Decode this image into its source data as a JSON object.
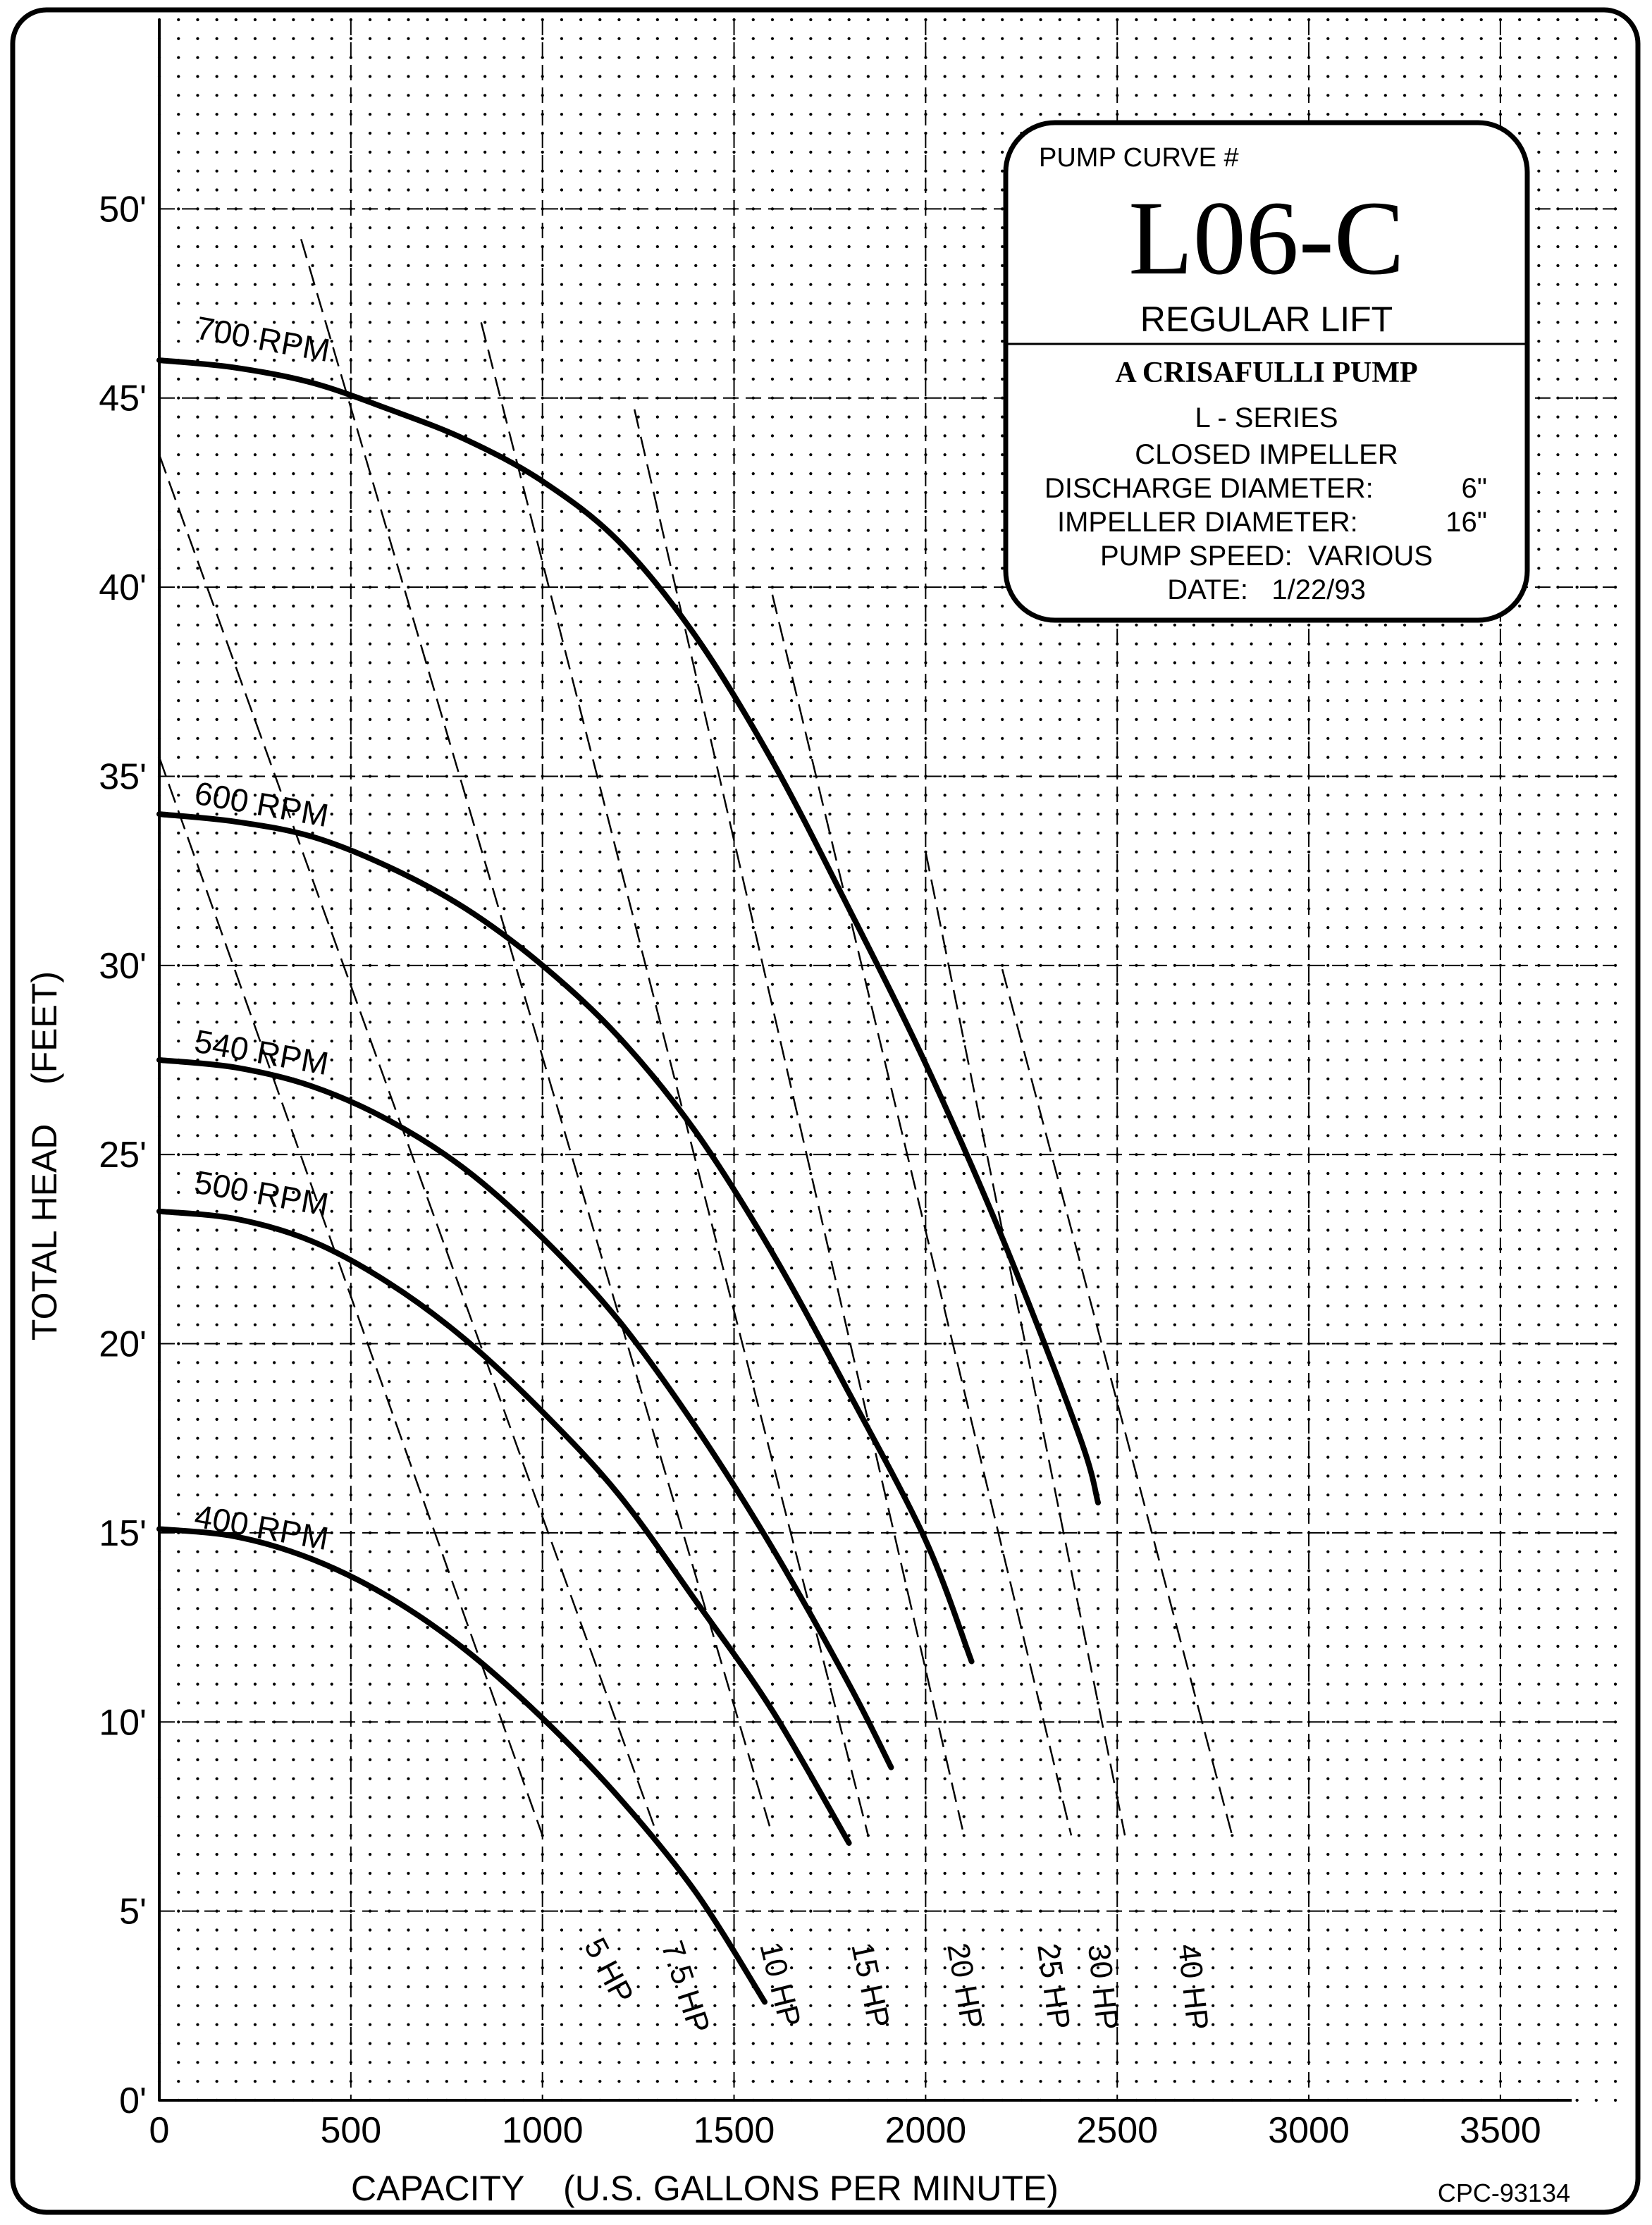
{
  "chart_data": {
    "type": "line",
    "xlabel": "CAPACITY    (U.S. GALLONS PER MINUTE)",
    "ylabel": "TOTAL HEAD    (FEET)",
    "xlim": [
      0,
      3800
    ],
    "ylim": [
      0,
      55
    ],
    "x_ticks": [
      0,
      500,
      1000,
      1500,
      2000,
      2500,
      3000,
      3500
    ],
    "x_tick_labels": [
      "0",
      "500",
      "1000",
      "1500",
      "2000",
      "2500",
      "3000",
      "3500"
    ],
    "y_ticks": [
      0,
      5,
      10,
      15,
      20,
      25,
      30,
      35,
      40,
      45,
      50
    ],
    "y_tick_labels": [
      "0'",
      "5'",
      "10'",
      "15'",
      "20'",
      "25'",
      "30'",
      "35'",
      "40'",
      "45'",
      "50'"
    ],
    "grid": true,
    "series": [
      {
        "name": "700 RPM",
        "style": "solid",
        "points": [
          [
            0,
            46
          ],
          [
            200,
            45.8
          ],
          [
            400,
            45.4
          ],
          [
            600,
            44.7
          ],
          [
            800,
            43.9
          ],
          [
            1000,
            42.8
          ],
          [
            1200,
            41.2
          ],
          [
            1400,
            38.7
          ],
          [
            1600,
            35.4
          ],
          [
            1800,
            31.5
          ],
          [
            2000,
            27.4
          ],
          [
            2200,
            22.8
          ],
          [
            2400,
            17.6
          ],
          [
            2450,
            15.8
          ]
        ]
      },
      {
        "name": "600 RPM",
        "style": "solid",
        "points": [
          [
            0,
            34
          ],
          [
            200,
            33.8
          ],
          [
            400,
            33.4
          ],
          [
            600,
            32.6
          ],
          [
            800,
            31.5
          ],
          [
            1000,
            30
          ],
          [
            1200,
            28.1
          ],
          [
            1400,
            25.6
          ],
          [
            1600,
            22.4
          ],
          [
            1800,
            18.7
          ],
          [
            2000,
            14.8
          ],
          [
            2120,
            11.6
          ]
        ]
      },
      {
        "name": "540 RPM",
        "style": "solid",
        "points": [
          [
            0,
            27.5
          ],
          [
            200,
            27.3
          ],
          [
            400,
            26.8
          ],
          [
            600,
            25.9
          ],
          [
            800,
            24.6
          ],
          [
            1000,
            22.8
          ],
          [
            1200,
            20.6
          ],
          [
            1400,
            17.8
          ],
          [
            1600,
            14.6
          ],
          [
            1800,
            11
          ],
          [
            1910,
            8.8
          ]
        ]
      },
      {
        "name": "500 RPM",
        "style": "solid",
        "points": [
          [
            0,
            23.5
          ],
          [
            200,
            23.3
          ],
          [
            400,
            22.7
          ],
          [
            600,
            21.6
          ],
          [
            800,
            20.1
          ],
          [
            1000,
            18.2
          ],
          [
            1200,
            16
          ],
          [
            1400,
            13.2
          ],
          [
            1600,
            10.3
          ],
          [
            1800,
            6.8
          ]
        ]
      },
      {
        "name": "400 RPM",
        "style": "solid",
        "points": [
          [
            0,
            15.1
          ],
          [
            200,
            14.9
          ],
          [
            400,
            14.3
          ],
          [
            600,
            13.3
          ],
          [
            800,
            11.9
          ],
          [
            1000,
            10.1
          ],
          [
            1200,
            8
          ],
          [
            1400,
            5.5
          ],
          [
            1580,
            2.6
          ]
        ]
      },
      {
        "name": "5 HP",
        "style": "dashed",
        "points": [
          [
            0,
            35.5
          ],
          [
            1000,
            7
          ]
        ]
      },
      {
        "name": "7.5 HP",
        "style": "dashed",
        "points": [
          [
            0,
            43.5
          ],
          [
            1300,
            7
          ]
        ]
      },
      {
        "name": "10 HP",
        "style": "dashed",
        "points": [
          [
            370,
            49.2
          ],
          [
            1600,
            7
          ]
        ]
      },
      {
        "name": "15 HP",
        "style": "dashed",
        "points": [
          [
            840,
            47
          ],
          [
            1850,
            7
          ]
        ]
      },
      {
        "name": "20 HP",
        "style": "dashed",
        "points": [
          [
            1240,
            44.7
          ],
          [
            2100,
            7
          ]
        ]
      },
      {
        "name": "25 HP",
        "style": "dashed",
        "points": [
          [
            1600,
            39.8
          ],
          [
            2380,
            7
          ]
        ]
      },
      {
        "name": "30 HP",
        "style": "dashed",
        "points": [
          [
            2000,
            33
          ],
          [
            2520,
            7
          ]
        ]
      },
      {
        "name": "40 HP",
        "style": "dashed",
        "points": [
          [
            2200,
            29.9
          ],
          [
            2800,
            7
          ]
        ]
      }
    ]
  },
  "curve_labels": {
    "rpm700": "700 RPM",
    "rpm600": "600 RPM",
    "rpm540": "540 RPM",
    "rpm500": "500 RPM",
    "rpm400": "400 RPM",
    "hp5": "5 HP",
    "hp7_5": "7.5 HP",
    "hp10": "10 HP",
    "hp15": "15 HP",
    "hp20": "20 HP",
    "hp25": "25 HP",
    "hp30": "30 HP",
    "hp40": "40 HP"
  },
  "info_box": {
    "curve_label": "PUMP CURVE #",
    "curve_number": "L06-C",
    "lift": "REGULAR LIFT",
    "brand": "A CRISAFULLI PUMP",
    "series": "L - SERIES",
    "impeller_type": "CLOSED IMPELLER",
    "discharge_label": "DISCHARGE DIAMETER:",
    "discharge_value": "6\"",
    "impeller_label": "IMPELLER DIAMETER:",
    "impeller_value": "16\"",
    "speed": "PUMP SPEED:  VARIOUS",
    "date": "DATE:   1/22/93"
  },
  "doc_code": "CPC-93134"
}
